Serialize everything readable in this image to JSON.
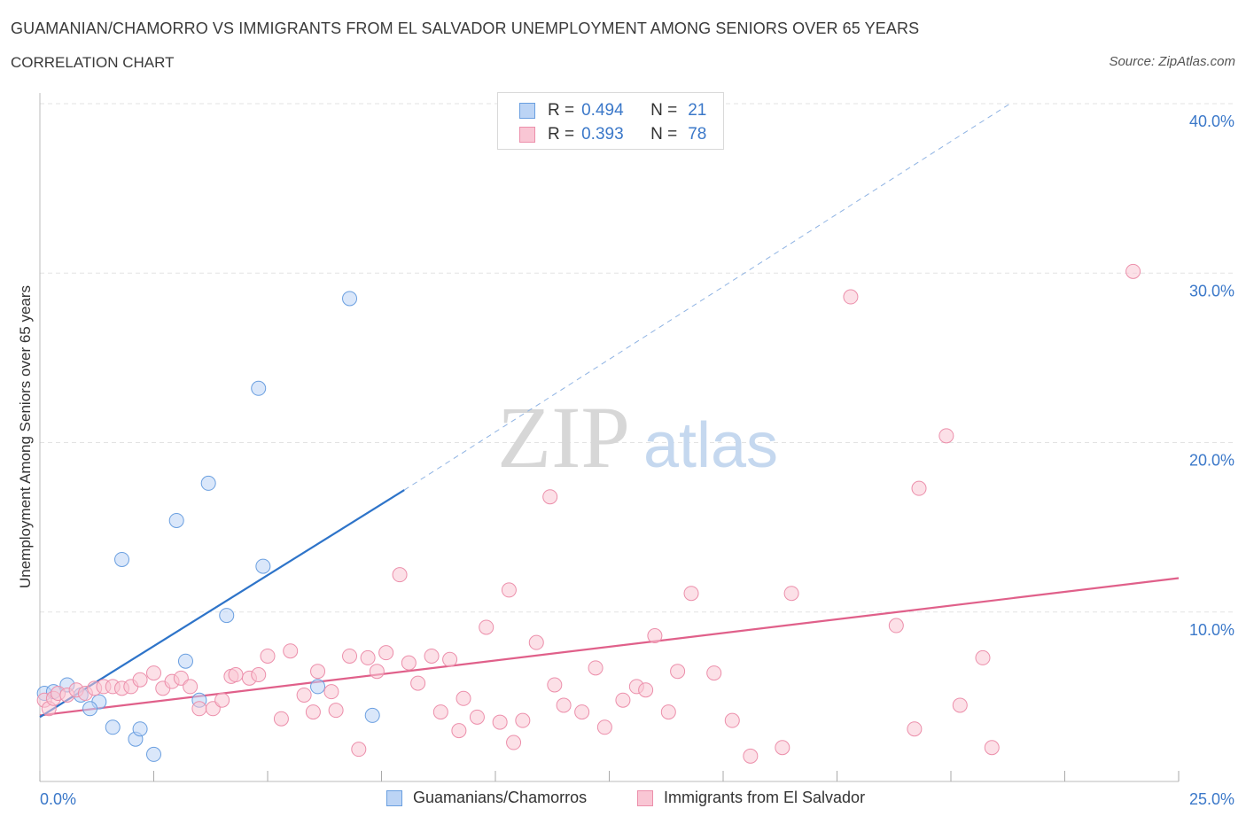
{
  "header": {
    "title": "GUAMANIAN/CHAMORRO VS IMMIGRANTS FROM EL SALVADOR UNEMPLOYMENT AMONG SENIORS OVER 65 YEARS",
    "subtitle": "CORRELATION CHART",
    "source": "Source: ZipAtlas.com"
  },
  "legend": {
    "r_label": "R =",
    "n_label": "N =",
    "series": [
      {
        "r": "0.494",
        "n": "21"
      },
      {
        "r": "0.393",
        "n": "78"
      }
    ]
  },
  "watermark": {
    "zip": "ZIP",
    "atlas": "atlas"
  },
  "colors": {
    "blue_fill": "#bcd4f5",
    "blue_stroke": "#6a9fe0",
    "blue_line": "#2e74c9",
    "pink_fill": "#f9c6d4",
    "pink_stroke": "#ec8fab",
    "pink_line": "#e0608a",
    "tick_label": "#3b78c9",
    "grid": "#e3e3e3"
  },
  "chart_data": {
    "type": "scatter",
    "title": "GUAMANIAN/CHAMORRO VS IMMIGRANTS FROM EL SALVADOR UNEMPLOYMENT AMONG SENIORS OVER 65 YEARS",
    "xlabel": "",
    "ylabel": "Unemployment Among Seniors over 65 years",
    "xlim": [
      0,
      25
    ],
    "ylim": [
      0,
      40
    ],
    "x_tick_labels": [
      "0.0%",
      "25.0%"
    ],
    "y_ticks": [
      10,
      20,
      30,
      40
    ],
    "y_tick_labels": [
      "10.0%",
      "20.0%",
      "30.0%",
      "40.0%"
    ],
    "series": [
      {
        "name": "Guamanians/Chamorros",
        "color": "blue",
        "points": [
          [
            0.1,
            5.2
          ],
          [
            0.3,
            5.3
          ],
          [
            0.6,
            5.7
          ],
          [
            0.9,
            5.1
          ],
          [
            1.3,
            4.7
          ],
          [
            1.1,
            4.3
          ],
          [
            1.6,
            3.2
          ],
          [
            1.8,
            13.1
          ],
          [
            2.1,
            2.5
          ],
          [
            2.2,
            3.1
          ],
          [
            2.5,
            1.6
          ],
          [
            3.0,
            15.4
          ],
          [
            3.2,
            7.1
          ],
          [
            3.5,
            4.8
          ],
          [
            3.7,
            17.6
          ],
          [
            4.1,
            9.8
          ],
          [
            4.8,
            23.2
          ],
          [
            4.9,
            12.7
          ],
          [
            6.1,
            5.6
          ],
          [
            6.8,
            28.5
          ],
          [
            7.3,
            3.9
          ]
        ],
        "trend": {
          "x0": 0,
          "y0": 3.8,
          "x1": 8.0,
          "y1": 17.2,
          "dash_to_x": 21.3,
          "dash_to_y": 40.0
        }
      },
      {
        "name": "Immigrants from El Salvador",
        "color": "pink",
        "points": [
          [
            0.1,
            4.8
          ],
          [
            0.2,
            4.3
          ],
          [
            0.3,
            4.9
          ],
          [
            0.4,
            5.2
          ],
          [
            0.6,
            5.1
          ],
          [
            0.8,
            5.4
          ],
          [
            1.0,
            5.2
          ],
          [
            1.2,
            5.5
          ],
          [
            1.4,
            5.6
          ],
          [
            1.6,
            5.6
          ],
          [
            1.8,
            5.5
          ],
          [
            2.0,
            5.6
          ],
          [
            2.2,
            6.0
          ],
          [
            2.5,
            6.4
          ],
          [
            2.7,
            5.5
          ],
          [
            2.9,
            5.9
          ],
          [
            3.1,
            6.1
          ],
          [
            3.3,
            5.6
          ],
          [
            3.5,
            4.3
          ],
          [
            3.8,
            4.3
          ],
          [
            4.0,
            4.8
          ],
          [
            4.2,
            6.2
          ],
          [
            4.3,
            6.3
          ],
          [
            4.6,
            6.1
          ],
          [
            4.8,
            6.3
          ],
          [
            5.0,
            7.4
          ],
          [
            5.3,
            3.7
          ],
          [
            5.5,
            7.7
          ],
          [
            5.8,
            5.1
          ],
          [
            6.0,
            4.1
          ],
          [
            6.1,
            6.5
          ],
          [
            6.4,
            5.3
          ],
          [
            6.5,
            4.2
          ],
          [
            6.8,
            7.4
          ],
          [
            7.0,
            1.9
          ],
          [
            7.2,
            7.3
          ],
          [
            7.4,
            6.5
          ],
          [
            7.6,
            7.6
          ],
          [
            7.9,
            12.2
          ],
          [
            8.1,
            7.0
          ],
          [
            8.3,
            5.8
          ],
          [
            8.6,
            7.4
          ],
          [
            8.8,
            4.1
          ],
          [
            9.0,
            7.2
          ],
          [
            9.2,
            3.0
          ],
          [
            9.3,
            4.9
          ],
          [
            9.6,
            3.8
          ],
          [
            9.8,
            9.1
          ],
          [
            10.1,
            3.5
          ],
          [
            10.3,
            11.3
          ],
          [
            10.4,
            2.3
          ],
          [
            10.6,
            3.6
          ],
          [
            10.9,
            8.2
          ],
          [
            11.2,
            16.8
          ],
          [
            11.3,
            5.7
          ],
          [
            11.5,
            4.5
          ],
          [
            11.9,
            4.1
          ],
          [
            12.2,
            6.7
          ],
          [
            12.4,
            3.2
          ],
          [
            12.8,
            4.8
          ],
          [
            13.1,
            5.6
          ],
          [
            13.3,
            5.4
          ],
          [
            13.5,
            8.6
          ],
          [
            13.8,
            4.1
          ],
          [
            14.0,
            6.5
          ],
          [
            14.3,
            11.1
          ],
          [
            14.8,
            6.4
          ],
          [
            15.2,
            3.6
          ],
          [
            15.6,
            1.5
          ],
          [
            16.3,
            2.0
          ],
          [
            16.5,
            11.1
          ],
          [
            17.8,
            28.6
          ],
          [
            18.8,
            9.2
          ],
          [
            19.2,
            3.1
          ],
          [
            19.3,
            17.3
          ],
          [
            19.9,
            20.4
          ],
          [
            20.2,
            4.5
          ],
          [
            20.7,
            7.3
          ],
          [
            20.9,
            2.0
          ],
          [
            24.0,
            30.1
          ]
        ],
        "trend": {
          "x0": 0,
          "y0": 3.9,
          "x1": 25.0,
          "y1": 12.0
        }
      }
    ],
    "legend_labels": [
      "Guamanians/Chamorros",
      "Immigrants from El Salvador"
    ]
  }
}
